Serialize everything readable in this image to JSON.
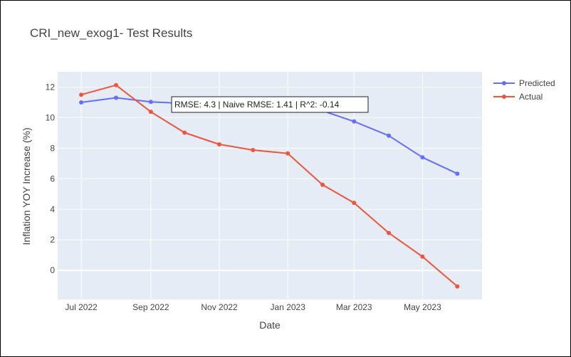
{
  "chart_data": {
    "type": "line",
    "title": "CRI_new_exog1- Test Results",
    "xlabel": "Date",
    "ylabel": "Inflation YOY Increase (%)",
    "x": [
      "2022-07-01",
      "2022-08-01",
      "2022-09-01",
      "2022-10-01",
      "2022-11-01",
      "2022-12-01",
      "2023-01-01",
      "2023-02-01",
      "2023-03-01",
      "2023-04-01",
      "2023-05-01",
      "2023-06-01"
    ],
    "xlim": [
      "2022-06-10",
      "2023-06-23"
    ],
    "x_ticks": [
      {
        "date": "2022-07-01",
        "label": "Jul 2022"
      },
      {
        "date": "2022-09-01",
        "label": "Sep 2022"
      },
      {
        "date": "2022-11-01",
        "label": "Nov 2022"
      },
      {
        "date": "2023-01-01",
        "label": "Jan 2023"
      },
      {
        "date": "2023-03-01",
        "label": "Mar 2023"
      },
      {
        "date": "2023-05-01",
        "label": "May 2023"
      }
    ],
    "ylim": [
      -1.9,
      13.0
    ],
    "y_ticks": [
      0,
      2,
      4,
      6,
      8,
      10,
      12
    ],
    "series": [
      {
        "name": "Predicted",
        "color": "#636efa",
        "values": [
          11.0,
          11.3,
          11.03,
          10.93,
          null,
          null,
          null,
          10.45,
          9.75,
          8.82,
          7.4,
          6.33
        ]
      },
      {
        "name": "Actual",
        "color": "#ef553b",
        "values": [
          11.5,
          12.13,
          10.38,
          9.02,
          8.25,
          7.88,
          7.66,
          5.6,
          4.42,
          2.45,
          0.9,
          -1.05
        ]
      }
    ],
    "annotation": "RMSE: 4.3 | Naive RMSE: 1.41 | R^2: -0.14",
    "grid": true,
    "legend_position": "top-right"
  },
  "colors": {
    "plot_background": "#e5ecf6",
    "gridline": "#ffffff",
    "text": "#444444"
  }
}
